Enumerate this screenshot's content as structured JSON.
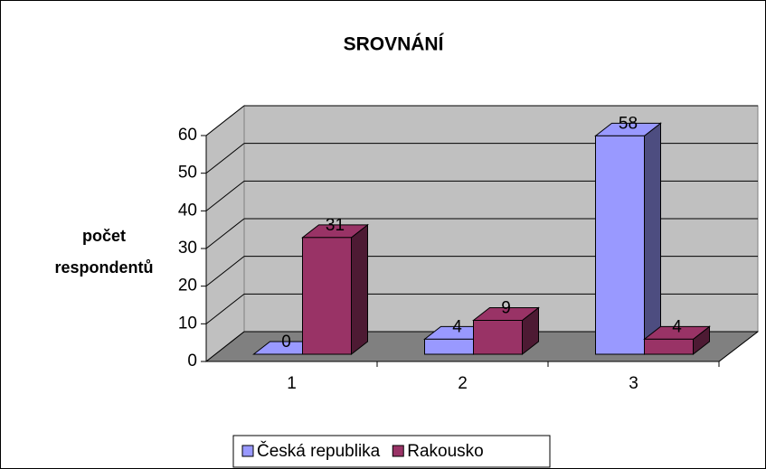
{
  "chart_data": {
    "type": "bar3d",
    "title": "SROVNÁNÍ",
    "ylabel": [
      "počet",
      "respondentů"
    ],
    "categories": [
      "1",
      "2",
      "3"
    ],
    "series": [
      {
        "name": "Česká republika",
        "color": "#9999ff",
        "values": [
          0,
          4,
          58
        ]
      },
      {
        "name": "Rakousko",
        "color": "#993366",
        "values": [
          31,
          9,
          4
        ]
      }
    ],
    "ylim": [
      0,
      60
    ],
    "yticks": [
      0,
      10,
      20,
      30,
      40,
      50,
      60
    ],
    "grid": true,
    "legend": "bottom"
  }
}
